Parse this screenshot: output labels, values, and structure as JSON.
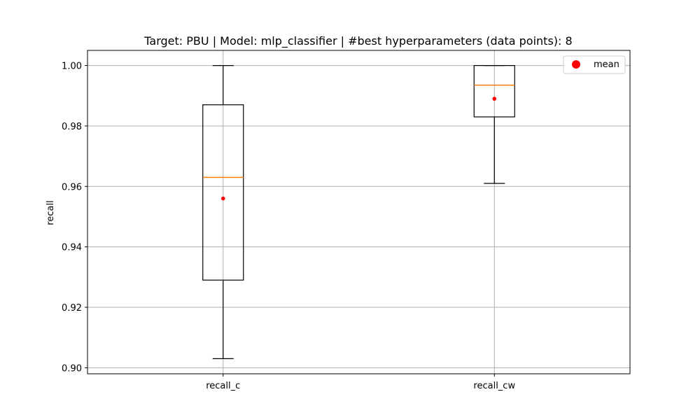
{
  "chart_data": {
    "type": "box",
    "title": "Target: PBU | Model: mlp_classifier | #best hyperparameters (data points): 8",
    "xlabel": "",
    "ylabel": "recall",
    "categories": [
      "recall_c",
      "recall_cw"
    ],
    "ylim": [
      0.898,
      1.005
    ],
    "yticks": [
      0.9,
      0.92,
      0.94,
      0.96,
      0.98,
      1.0
    ],
    "ytick_labels": [
      "0.90",
      "0.92",
      "0.94",
      "0.96",
      "0.98",
      "1.00"
    ],
    "grid": true,
    "legend": {
      "position": "top-right",
      "entries": [
        {
          "label": "mean",
          "marker": "circle",
          "color": "#ff0000"
        }
      ]
    },
    "boxes": [
      {
        "category": "recall_c",
        "whisker_low": 0.903,
        "q1": 0.929,
        "median": 0.963,
        "q3": 0.987,
        "whisker_high": 1.0,
        "mean": 0.956
      },
      {
        "category": "recall_cw",
        "whisker_low": 0.961,
        "q1": 0.983,
        "median": 0.9935,
        "q3": 1.0,
        "whisker_high": 1.0,
        "mean": 0.989
      }
    ],
    "colors": {
      "box": "#000000",
      "median": "#ff7f0e",
      "mean": "#ff0000",
      "grid": "#b0b0b0"
    }
  }
}
